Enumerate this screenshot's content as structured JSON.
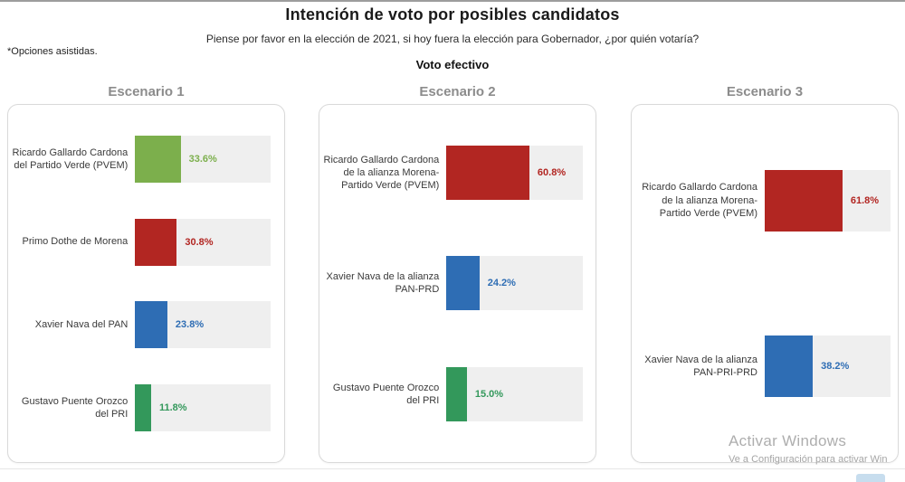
{
  "header": {
    "title": "Intención de voto por posibles candidatos",
    "subtitle": "Piense por favor en la elección de 2021, si hoy fuera la elección para Gobernador, ¿por quién votaría?",
    "note": "*Opciones asistidas.",
    "section_label": "Voto efectivo"
  },
  "colors": {
    "pvem_green": "#7caf4c",
    "morena_red": "#b22622",
    "pan_blue": "#2e6db4",
    "pri_green": "#33985b",
    "track_gray": "#efefef",
    "panel_border": "#d9d9d9",
    "scenario_title_gray": "#8c8c8c"
  },
  "chart_data": [
    {
      "type": "bar",
      "title": "Escenario 1",
      "orientation": "horizontal",
      "xlim": [
        0,
        100
      ],
      "grid": false,
      "legend": "none",
      "categories": [
        "Ricardo Gallardo Cardona del Partido Verde (PVEM)",
        "Primo Dothe de Morena",
        "Xavier Nava del PAN",
        "Gustavo Puente Orozco del PRI"
      ],
      "values": [
        33.6,
        30.8,
        23.8,
        11.8
      ],
      "labels": [
        "33.6%",
        "30.8%",
        "23.8%",
        "11.8%"
      ],
      "bar_colors": [
        "#7caf4c",
        "#b22622",
        "#2e6db4",
        "#33985b"
      ]
    },
    {
      "type": "bar",
      "title": "Escenario 2",
      "orientation": "horizontal",
      "xlim": [
        0,
        100
      ],
      "grid": false,
      "legend": "none",
      "categories": [
        "Ricardo Gallardo Cardona de la alianza Morena-Partido Verde (PVEM)",
        "Xavier Nava de la alianza PAN-PRD",
        "Gustavo Puente Orozco del PRI"
      ],
      "values": [
        60.8,
        24.2,
        15.0
      ],
      "labels": [
        "60.8%",
        "24.2%",
        "15.0%"
      ],
      "bar_colors": [
        "#b22622",
        "#2e6db4",
        "#33985b"
      ]
    },
    {
      "type": "bar",
      "title": "Escenario 3",
      "orientation": "horizontal",
      "xlim": [
        0,
        100
      ],
      "grid": false,
      "legend": "none",
      "categories": [
        "Ricardo Gallardo Cardona de la alianza Morena-Partido Verde (PVEM)",
        "Xavier Nava de la alianza PAN-PRI-PRD"
      ],
      "values": [
        61.8,
        38.2
      ],
      "labels": [
        "61.8%",
        "38.2%"
      ],
      "bar_colors": [
        "#b22622",
        "#2e6db4"
      ]
    }
  ],
  "watermark": {
    "line1": "Activar Windows",
    "line2": "Ve a Configuración para activar Win"
  }
}
